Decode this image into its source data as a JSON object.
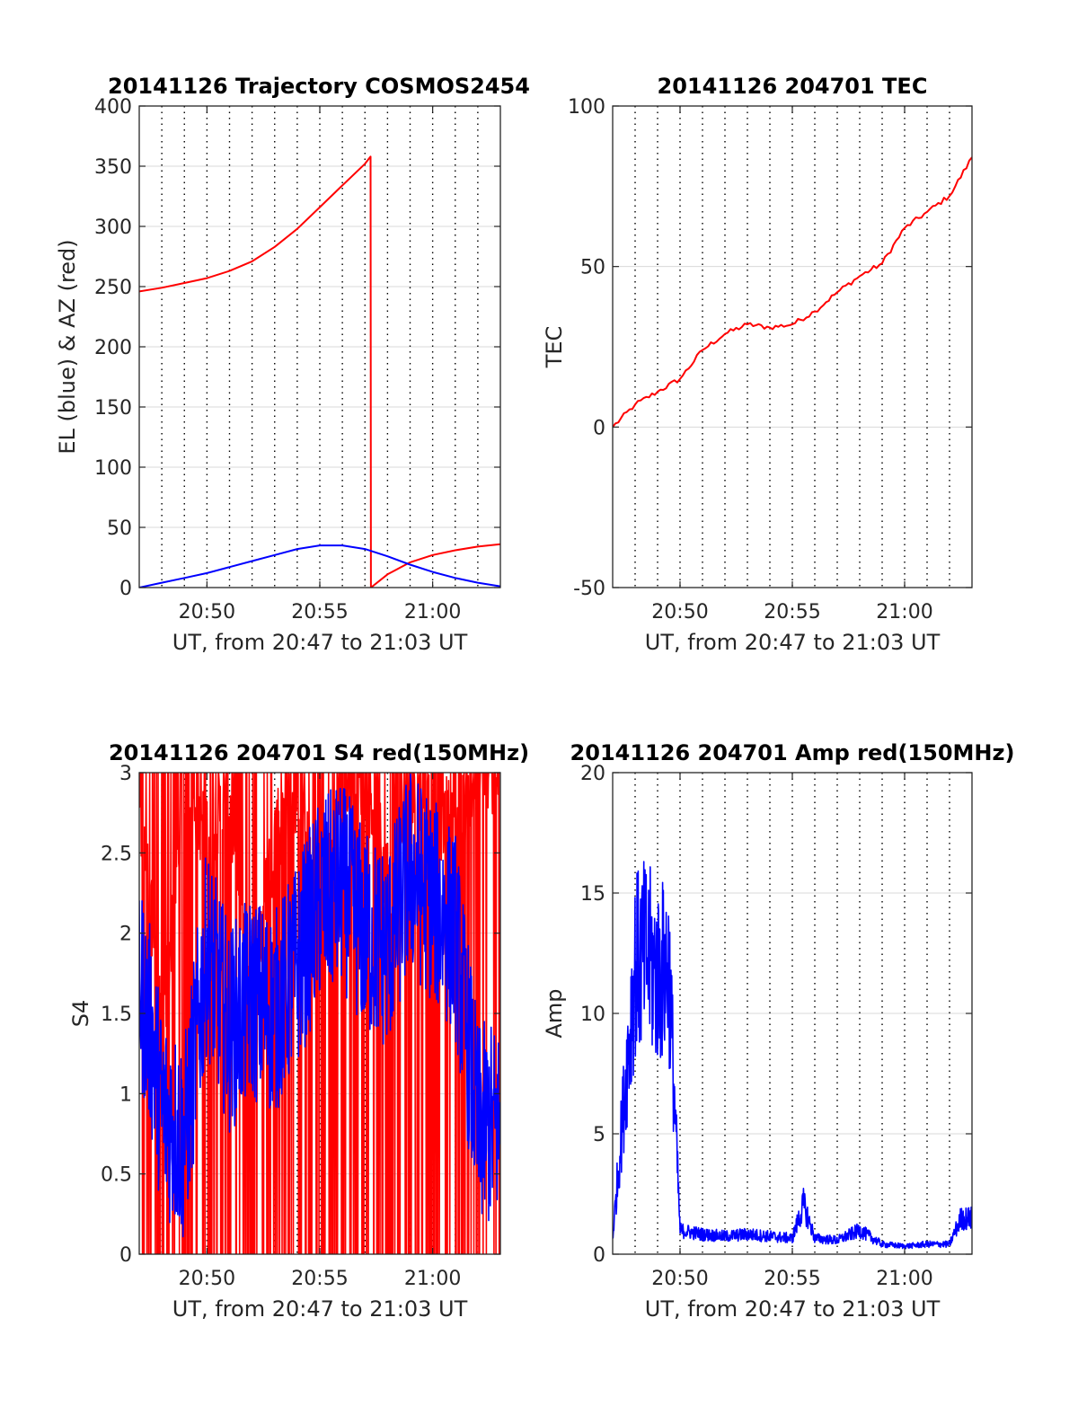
{
  "figure": {
    "colors": {
      "red": "#ff0000",
      "blue": "#0000ff",
      "grid_major": "#d9d9d9",
      "grid_minor": "#000000",
      "axis": "#262626",
      "title": "#000000"
    }
  },
  "chart_data": [
    {
      "id": "trajectory",
      "type": "line",
      "title": "20141126 Trajectory COSMOS2454",
      "xlabel": "UT, from 20:47 to 21:03 UT",
      "ylabel": "EL (blue) & AZ (red)",
      "xlim": [
        "20:47",
        "21:03"
      ],
      "ylim": [
        0,
        400
      ],
      "yticks": [
        0,
        50,
        100,
        150,
        200,
        250,
        300,
        350,
        400
      ],
      "xticks": [
        "20:50",
        "20:55",
        "21:00"
      ],
      "grid": true,
      "series": [
        {
          "label_hint": "AZ (red)",
          "color": "#ff0000",
          "x": [
            "20:47",
            "20:48",
            "20:49",
            "20:50",
            "20:51",
            "20:52",
            "20:53",
            "20:54",
            "20:55",
            "20:56",
            "20:57",
            "20:57:15",
            "20:57:16",
            "20:58",
            "20:59",
            "21:00",
            "21:01",
            "21:02",
            "21:03"
          ],
          "y": [
            246,
            249,
            253,
            257,
            263,
            271,
            283,
            298,
            316,
            334,
            352,
            358,
            0,
            11,
            21,
            27,
            31,
            34,
            36
          ]
        },
        {
          "label_hint": "EL (blue)",
          "color": "#0000ff",
          "x": [
            "20:47",
            "20:48",
            "20:49",
            "20:50",
            "20:51",
            "20:52",
            "20:53",
            "20:54",
            "20:55",
            "20:56",
            "20:57",
            "20:58",
            "20:59",
            "21:00",
            "21:01",
            "21:02",
            "21:03"
          ],
          "y": [
            0,
            4,
            8,
            12,
            17,
            22,
            27,
            32,
            35,
            35,
            32,
            26,
            19,
            13,
            8,
            4,
            1
          ]
        }
      ]
    },
    {
      "id": "tec",
      "type": "line",
      "title": "20141126 204701 TEC",
      "xlabel": "UT, from 20:47 to 21:03 UT",
      "ylabel": "TEC",
      "xlim": [
        "20:47",
        "21:03"
      ],
      "ylim": [
        -50,
        100
      ],
      "yticks": [
        -50,
        0,
        50,
        100
      ],
      "xticks": [
        "20:50",
        "20:55",
        "21:00"
      ],
      "grid": true,
      "series": [
        {
          "color": "#ff0000",
          "x": [
            "20:47",
            "20:48",
            "20:49",
            "20:50",
            "20:51",
            "20:52",
            "20:53",
            "20:54",
            "20:55",
            "20:56",
            "20:57",
            "20:58",
            "20:59",
            "21:00",
            "21:01",
            "21:02",
            "21:03"
          ],
          "y": [
            0,
            7,
            11,
            15,
            24,
            29,
            32,
            31,
            32,
            36,
            42,
            47,
            51,
            62,
            67,
            72,
            84
          ]
        }
      ]
    },
    {
      "id": "s4",
      "type": "line",
      "title": "20141126 204701 S4 red(150MHz)",
      "xlabel": "UT, from 20:47 to 21:03 UT",
      "ylabel": "S4",
      "xlim": [
        "20:47",
        "21:03"
      ],
      "ylim": [
        0,
        3
      ],
      "yticks": [
        0,
        0.5,
        1,
        1.5,
        2,
        2.5,
        3
      ],
      "xticks": [
        "20:50",
        "20:55",
        "21:00"
      ],
      "grid": true,
      "series": [
        {
          "color": "#ff0000",
          "style": "noisy, saturating between 0 and 3",
          "x": [
            "20:47",
            "20:48",
            "20:49",
            "20:50",
            "20:51",
            "20:52",
            "20:53",
            "20:54",
            "20:55",
            "20:56",
            "20:57",
            "20:58",
            "20:59",
            "21:00",
            "21:01",
            "21:02",
            "21:03"
          ],
          "y": [
            2.8,
            1.2,
            2.9,
            2.5,
            2.7,
            1.5,
            2.5,
            2.8,
            1.8,
            2.9,
            2.9,
            2.2,
            2.8,
            2.7,
            2.5,
            2.9,
            2.9
          ]
        },
        {
          "color": "#0000ff",
          "style": "noisy",
          "x": [
            "20:47",
            "20:47:30",
            "20:48",
            "20:49",
            "20:50",
            "20:51",
            "20:52",
            "20:53",
            "20:54",
            "20:55",
            "20:56",
            "20:57",
            "20:58",
            "20:59",
            "21:00",
            "21:01",
            "21:02",
            "21:03"
          ],
          "y": [
            1.7,
            1.4,
            0.9,
            0.7,
            1.9,
            1.4,
            1.6,
            1.5,
            1.8,
            2.2,
            2.3,
            2.0,
            1.9,
            2.4,
            2.2,
            2.0,
            0.8,
            0.8
          ]
        }
      ]
    },
    {
      "id": "amp",
      "type": "line",
      "title": "20141126 204701 Amp red(150MHz)",
      "xlabel": "UT, from 20:47 to 21:03 UT",
      "ylabel": "Amp",
      "xlim": [
        "20:47",
        "21:03"
      ],
      "ylim": [
        0,
        20
      ],
      "yticks": [
        0,
        5,
        10,
        15,
        20
      ],
      "xticks": [
        "20:50",
        "20:55",
        "21:00"
      ],
      "grid": true,
      "series": [
        {
          "color": "#0000ff",
          "style": "noisy amplitude",
          "x": [
            "20:47",
            "20:48",
            "20:48:30",
            "20:49",
            "20:49:30",
            "20:50",
            "20:51",
            "20:52",
            "20:53",
            "20:54",
            "20:55",
            "20:55:30",
            "20:56",
            "20:57",
            "20:58",
            "20:59",
            "21:00",
            "21:01",
            "21:02",
            "21:02:30",
            "21:03"
          ],
          "y": [
            0.8,
            14.5,
            15.0,
            14.0,
            14.5,
            1.2,
            1.0,
            0.9,
            1.0,
            0.9,
            0.8,
            2.5,
            0.8,
            0.7,
            1.2,
            0.5,
            0.4,
            0.5,
            0.5,
            1.8,
            1.8
          ]
        }
      ]
    }
  ]
}
